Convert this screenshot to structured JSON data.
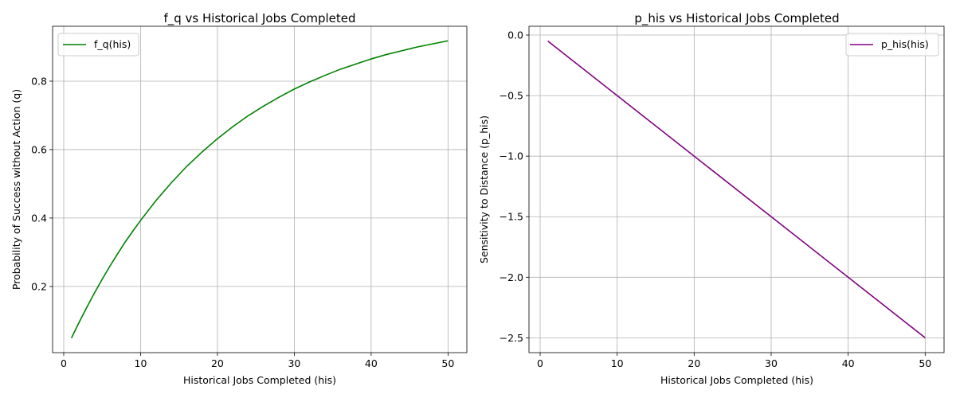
{
  "chart_data": [
    {
      "type": "line",
      "title": "f_q vs Historical Jobs Completed",
      "xlabel": "Historical Jobs Completed (his)",
      "ylabel": "Probability of Success without Action (q)",
      "xlim": [
        -1.45,
        52.45
      ],
      "ylim": [
        0.0066,
        0.9605
      ],
      "xticks": [
        0,
        10,
        20,
        30,
        40,
        50
      ],
      "xtick_labels": [
        "0",
        "10",
        "20",
        "30",
        "40",
        "50"
      ],
      "yticks": [
        0.2,
        0.4,
        0.6,
        0.8
      ],
      "ytick_labels": [
        "0.2",
        "0.4",
        "0.6",
        "0.8"
      ],
      "grid": true,
      "legend_position": "upper-left",
      "series": [
        {
          "name": "f_q(his)",
          "color": "#008000",
          "x": [
            1,
            2,
            3,
            4,
            5,
            6,
            7,
            8,
            9,
            10,
            12,
            14,
            16,
            18,
            20,
            22,
            24,
            26,
            28,
            30,
            32,
            34,
            36,
            38,
            40,
            42,
            44,
            46,
            48,
            50
          ],
          "y": [
            0.049,
            0.095,
            0.139,
            0.181,
            0.221,
            0.259,
            0.295,
            0.33,
            0.362,
            0.393,
            0.451,
            0.503,
            0.551,
            0.593,
            0.632,
            0.667,
            0.699,
            0.727,
            0.753,
            0.777,
            0.798,
            0.817,
            0.835,
            0.85,
            0.865,
            0.878,
            0.889,
            0.9,
            0.909,
            0.918
          ]
        }
      ]
    },
    {
      "type": "line",
      "title": "p_his vs Historical Jobs Completed",
      "xlabel": "Historical Jobs Completed (his)",
      "ylabel": "Sensitivity to Distance (p_his)",
      "xlim": [
        -1.45,
        52.45
      ],
      "ylim": [
        -2.6225,
        0.0725
      ],
      "xticks": [
        0,
        10,
        20,
        30,
        40,
        50
      ],
      "xtick_labels": [
        "0",
        "10",
        "20",
        "30",
        "40",
        "50"
      ],
      "yticks": [
        0.0,
        -0.5,
        -1.0,
        -1.5,
        -2.0,
        -2.5
      ],
      "ytick_labels": [
        "0.0",
        "−0.5",
        "−1.0",
        "−1.5",
        "−2.0",
        "−2.5"
      ],
      "grid": true,
      "legend_position": "upper-right",
      "series": [
        {
          "name": "p_his(his)",
          "color": "#800080",
          "x": [
            1,
            50
          ],
          "y": [
            -0.05,
            -2.5
          ]
        }
      ]
    }
  ]
}
